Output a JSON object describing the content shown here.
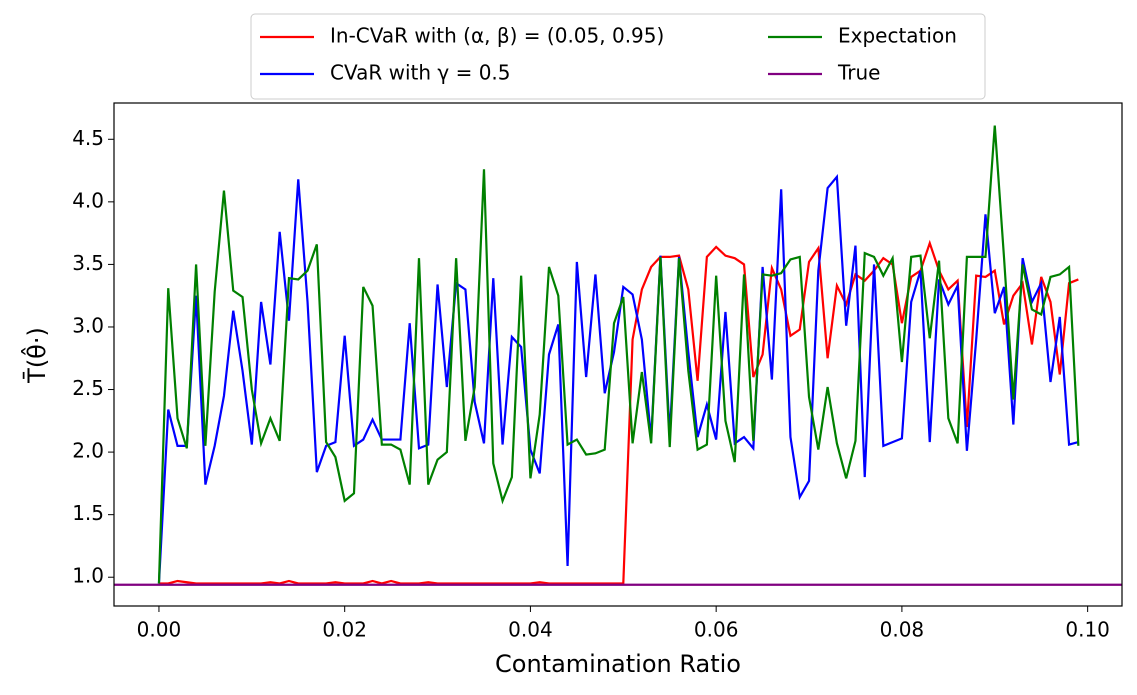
{
  "chart_data": {
    "type": "line",
    "ylabel": "T̄(θ̂·)",
    "xlabel": "Contamination Ratio",
    "x": [
      0,
      0.001,
      0.002,
      0.003,
      0.004,
      0.005,
      0.006,
      0.007,
      0.008,
      0.009,
      0.01,
      0.011,
      0.012,
      0.013,
      0.014,
      0.015,
      0.016,
      0.017,
      0.018,
      0.019,
      0.02,
      0.021,
      0.022,
      0.023,
      0.024,
      0.025,
      0.026,
      0.027,
      0.028,
      0.029,
      0.03,
      0.031,
      0.032,
      0.033,
      0.034,
      0.035,
      0.036,
      0.037,
      0.038,
      0.039,
      0.04,
      0.041,
      0.042,
      0.043,
      0.044,
      0.045,
      0.046,
      0.047,
      0.048,
      0.049,
      0.05,
      0.051,
      0.052,
      0.053,
      0.054,
      0.055,
      0.056,
      0.057,
      0.058,
      0.059,
      0.06,
      0.061,
      0.062,
      0.063,
      0.064,
      0.065,
      0.066,
      0.067,
      0.068,
      0.069,
      0.07,
      0.071,
      0.072,
      0.073,
      0.074,
      0.075,
      0.076,
      0.077,
      0.078,
      0.079,
      0.08,
      0.081,
      0.082,
      0.083,
      0.084,
      0.085,
      0.086,
      0.087,
      0.088,
      0.089,
      0.09,
      0.091,
      0.092,
      0.093,
      0.094,
      0.095,
      0.096,
      0.097,
      0.098,
      0.099
    ],
    "series": [
      {
        "name": "In-CVaR with (α, β) = (0.05, 0.95)",
        "color": "#ff0000",
        "values": [
          0.95,
          0.95,
          0.97,
          0.96,
          0.95,
          0.95,
          0.95,
          0.95,
          0.95,
          0.95,
          0.95,
          0.95,
          0.96,
          0.95,
          0.97,
          0.95,
          0.95,
          0.95,
          0.95,
          0.96,
          0.95,
          0.95,
          0.95,
          0.97,
          0.95,
          0.97,
          0.95,
          0.95,
          0.95,
          0.96,
          0.95,
          0.95,
          0.95,
          0.95,
          0.95,
          0.95,
          0.95,
          0.95,
          0.95,
          0.95,
          0.95,
          0.96,
          0.95,
          0.95,
          0.95,
          0.95,
          0.95,
          0.95,
          0.95,
          0.95,
          0.95,
          2.9,
          3.3,
          3.48,
          3.56,
          3.56,
          3.57,
          3.3,
          2.57,
          3.56,
          3.64,
          3.57,
          3.55,
          3.5,
          2.6,
          2.78,
          3.47,
          3.3,
          2.93,
          2.98,
          3.52,
          3.63,
          2.75,
          3.33,
          3.18,
          3.42,
          3.37,
          3.45,
          3.55,
          3.5,
          3.03,
          3.4,
          3.45,
          3.67,
          3.45,
          3.3,
          3.37,
          2.2,
          3.41,
          3.4,
          3.45,
          3.02,
          3.25,
          3.35,
          2.86,
          3.4,
          3.2,
          2.62,
          3.35,
          3.38
        ]
      },
      {
        "name": "CVaR with γ = 0.5",
        "color": "#0000ff",
        "values": [
          0.95,
          2.34,
          2.05,
          2.05,
          3.25,
          1.74,
          2.05,
          2.45,
          3.13,
          2.65,
          2.06,
          3.2,
          2.7,
          3.76,
          3.05,
          4.18,
          3.2,
          1.84,
          2.05,
          2.08,
          2.93,
          2.05,
          2.1,
          2.26,
          2.1,
          2.1,
          2.1,
          3.03,
          2.03,
          2.06,
          3.34,
          2.52,
          3.35,
          3.3,
          2.4,
          2.07,
          3.39,
          2.06,
          2.92,
          2.84,
          2.02,
          1.83,
          2.78,
          3.02,
          1.09,
          3.52,
          2.6,
          3.42,
          2.47,
          2.8,
          3.32,
          3.26,
          2.9,
          2.1,
          3.57,
          2.13,
          3.56,
          2.8,
          2.12,
          2.38,
          2.1,
          3.12,
          2.07,
          2.12,
          2.03,
          3.48,
          2.58,
          4.1,
          2.12,
          1.64,
          1.77,
          3.45,
          4.11,
          4.2,
          3.01,
          3.65,
          1.8,
          3.5,
          2.05,
          2.08,
          2.11,
          3.2,
          3.45,
          2.08,
          3.38,
          3.18,
          3.33,
          2.01,
          2.9,
          3.9,
          3.11,
          3.32,
          2.22,
          3.55,
          3.2,
          3.35,
          2.56,
          3.08,
          2.06,
          2.08
        ]
      },
      {
        "name": "Expectation",
        "color": "#008000",
        "values": [
          0.95,
          3.31,
          2.27,
          2.03,
          3.5,
          2.05,
          3.28,
          4.09,
          3.29,
          3.24,
          2.5,
          2.07,
          2.27,
          2.09,
          3.39,
          3.38,
          3.45,
          3.66,
          2.08,
          1.96,
          1.61,
          1.67,
          3.32,
          3.17,
          2.06,
          2.06,
          2.02,
          1.74,
          3.55,
          1.74,
          1.94,
          2.0,
          3.55,
          2.09,
          2.52,
          4.26,
          1.91,
          1.61,
          1.8,
          3.41,
          1.79,
          2.3,
          3.48,
          3.25,
          2.06,
          2.1,
          1.98,
          1.99,
          2.02,
          3.03,
          3.24,
          2.07,
          2.64,
          2.07,
          3.56,
          2.04,
          3.55,
          2.65,
          2.02,
          2.06,
          3.41,
          2.25,
          1.92,
          3.42,
          2.09,
          3.42,
          3.41,
          3.43,
          3.54,
          3.56,
          2.44,
          2.02,
          2.52,
          2.07,
          1.79,
          2.09,
          3.59,
          3.56,
          3.41,
          3.55,
          2.72,
          3.56,
          3.57,
          2.91,
          3.53,
          2.27,
          2.07,
          3.56,
          3.56,
          3.56,
          4.61,
          3.55,
          2.42,
          3.5,
          3.14,
          3.1,
          3.4,
          3.42,
          3.48,
          2.05
        ]
      },
      {
        "name": "True",
        "color": "#800080",
        "y": 0.94
      }
    ],
    "xlim": [
      -0.00484,
      0.1037
    ],
    "ylim": [
      0.77,
      4.79
    ],
    "xticks": [
      {
        "value": 0,
        "label": "0.00"
      },
      {
        "value": 0.02,
        "label": "0.02"
      },
      {
        "value": 0.04,
        "label": "0.04"
      },
      {
        "value": 0.06,
        "label": "0.06"
      },
      {
        "value": 0.08,
        "label": "0.08"
      },
      {
        "value": 0.1,
        "label": "0.10"
      }
    ],
    "yticks": [
      {
        "value": 1,
        "label": "1.0"
      },
      1.5,
      {
        "value": 2,
        "label": "2.0"
      },
      2.5,
      {
        "value": 3,
        "label": "3.0"
      },
      3.5,
      {
        "value": 4,
        "label": "4.0"
      },
      4.5
    ],
    "legend": "top"
  }
}
